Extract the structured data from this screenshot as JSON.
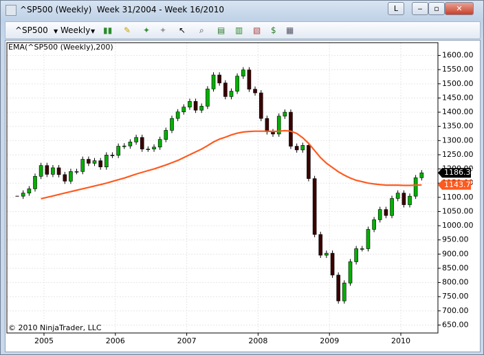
{
  "window": {
    "title": "^SP500 (Weekly)  Week 31/2004 - Week 16/2010",
    "period": "Weekly",
    "button": "L"
  },
  "chart_data": {
    "type": "candlestick",
    "indicator_label": "EMA(^SP500 (Weekly),200)",
    "copyright": "© 2010 NinjaTrader, LLC",
    "x": [
      2004.625,
      2004.708,
      2004.792,
      2004.875,
      2004.958,
      2005.042,
      2005.125,
      2005.208,
      2005.292,
      2005.375,
      2005.458,
      2005.542,
      2005.625,
      2005.708,
      2005.792,
      2005.875,
      2005.958,
      2006.042,
      2006.125,
      2006.208,
      2006.292,
      2006.375,
      2006.458,
      2006.542,
      2006.625,
      2006.708,
      2006.792,
      2006.875,
      2006.958,
      2007.042,
      2007.125,
      2007.208,
      2007.292,
      2007.375,
      2007.458,
      2007.542,
      2007.625,
      2007.708,
      2007.792,
      2007.875,
      2007.958,
      2008.042,
      2008.125,
      2008.208,
      2008.292,
      2008.375,
      2008.458,
      2008.542,
      2008.625,
      2008.708,
      2008.792,
      2008.875,
      2008.958,
      2009.042,
      2009.125,
      2009.208,
      2009.292,
      2009.375,
      2009.458,
      2009.542,
      2009.625,
      2009.708,
      2009.792,
      2009.875,
      2009.958,
      2010.042,
      2010.125,
      2010.208,
      2010.292
    ],
    "series": [
      {
        "name": "^SP500",
        "up_color": "#00b000",
        "down_color": "#3a0000",
        "values": [
          1104,
          1115,
          1130,
          1174,
          1212,
          1181,
          1204,
          1180,
          1157,
          1191,
          1191,
          1234,
          1220,
          1229,
          1207,
          1249,
          1248,
          1280,
          1281,
          1295,
          1311,
          1270,
          1270,
          1277,
          1304,
          1336,
          1378,
          1401,
          1418,
          1438,
          1407,
          1421,
          1482,
          1531,
          1503,
          1455,
          1474,
          1527,
          1549,
          1481,
          1468,
          1378,
          1331,
          1323,
          1386,
          1400,
          1280,
          1267,
          1283,
          1166,
          969,
          896,
          903,
          826,
          735,
          798,
          873,
          919,
          919,
          987,
          1021,
          1057,
          1036,
          1096,
          1115,
          1074,
          1104,
          1169,
          1186.31
        ]
      },
      {
        "name": "EMA(^SP500 (Weekly),200)",
        "color": "#ff5a1e",
        "values": [
          null,
          null,
          null,
          null,
          1095,
          1100,
          1105,
          1110,
          1115,
          1120,
          1125,
          1130,
          1135,
          1140,
          1145,
          1150,
          1156,
          1162,
          1168,
          1175,
          1182,
          1188,
          1194,
          1200,
          1207,
          1214,
          1222,
          1230,
          1240,
          1250,
          1260,
          1270,
          1282,
          1295,
          1305,
          1312,
          1320,
          1326,
          1330,
          1332,
          1333,
          1333,
          1333,
          1332,
          1333,
          1335,
          1333,
          1325,
          1310,
          1290,
          1265,
          1240,
          1220,
          1205,
          1190,
          1178,
          1168,
          1160,
          1155,
          1150,
          1147,
          1145,
          1143,
          1143,
          1143,
          1142,
          1142,
          1143,
          1143.71
        ]
      }
    ],
    "xlim": [
      2004.48,
      2010.52
    ],
    "xticks": [
      2005,
      2006,
      2007,
      2008,
      2009,
      2010
    ],
    "ylim": [
      622,
      1645
    ],
    "yticks": [
      {
        "value": 650,
        "label": "650.00"
      },
      {
        "value": 700,
        "label": "700.00"
      },
      {
        "value": 750,
        "label": "750.00"
      },
      {
        "value": 800,
        "label": "800.00"
      },
      {
        "value": 850,
        "label": "850.00"
      },
      {
        "value": 900,
        "label": "900.00"
      },
      {
        "value": 950,
        "label": "950.00"
      },
      {
        "value": 1000,
        "label": "1000.00"
      },
      {
        "value": 1050,
        "label": "1050.00"
      },
      {
        "value": 1100,
        "label": "1100.00"
      },
      {
        "value": 1150,
        "label": "1150.00"
      },
      {
        "value": 1200,
        "label": "1200.00"
      },
      {
        "value": 1250,
        "label": "1250.00"
      },
      {
        "value": 1300,
        "label": "1300.00"
      },
      {
        "value": 1350,
        "label": "1350.00"
      },
      {
        "value": 1400,
        "label": "1400.00"
      },
      {
        "value": 1450,
        "label": "1450.00"
      },
      {
        "value": 1500,
        "label": "1500.00"
      },
      {
        "value": 1550,
        "label": "1550.00"
      },
      {
        "value": 1600,
        "label": "1600.00"
      }
    ],
    "grid": true
  }
}
